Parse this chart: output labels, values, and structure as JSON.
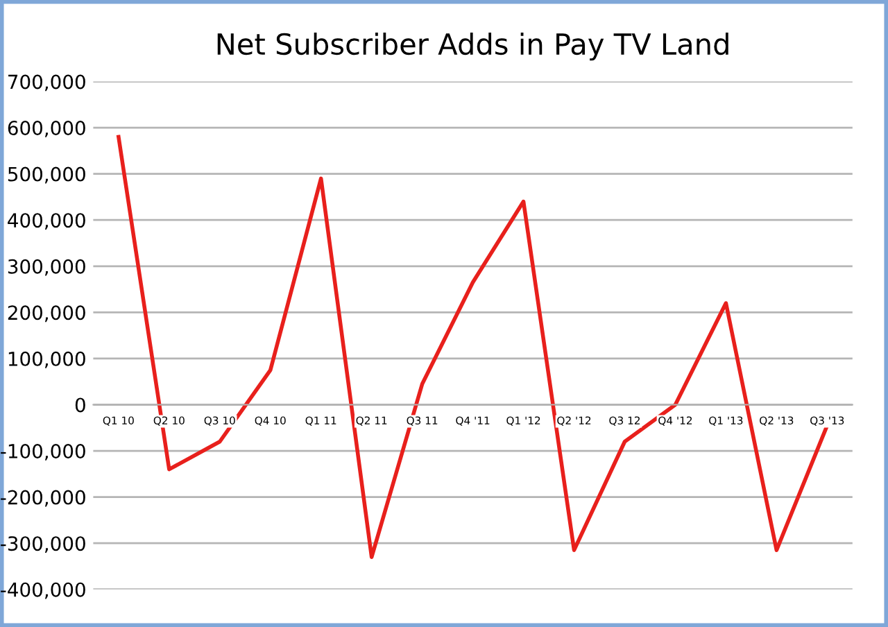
{
  "chart_data": {
    "type": "line",
    "title": "Net Subscriber Adds in Pay TV Land",
    "categories": [
      "Q1 10",
      "Q2 10",
      "Q3 10",
      "Q4 10",
      "Q1 11",
      "Q2 11",
      "Q3 11",
      "Q4 '11",
      "Q1 '12",
      "Q2 '12",
      "Q3 12",
      "Q4 '12",
      "Q1 '13",
      "Q2 '13",
      "Q3 '13"
    ],
    "series": [
      {
        "color": "#e8201c",
        "values": [
          580000,
          -140000,
          -80000,
          75000,
          490000,
          -330000,
          45000,
          265000,
          440000,
          -315000,
          -80000,
          0,
          220000,
          -315000,
          -45000
        ]
      }
    ],
    "ylim": [
      -400000,
      700000
    ],
    "yticks": [
      {
        "value": -400000,
        "label": "-400,000"
      },
      {
        "value": -300000,
        "label": "-300,000"
      },
      {
        "value": -200000,
        "label": "-200,000"
      },
      {
        "value": -100000,
        "label": "-100,000"
      },
      0,
      {
        "value": 100000,
        "label": "100,000"
      },
      {
        "value": 200000,
        "label": "200,000"
      },
      {
        "value": 300000,
        "label": "300,000"
      },
      {
        "value": 400000,
        "label": "400,000"
      },
      {
        "value": 500000,
        "label": "500,000"
      },
      {
        "value": 600000,
        "label": "600,000"
      },
      {
        "value": 700000,
        "label": "700,000"
      }
    ],
    "grid": "y",
    "legend": false,
    "marker": "none",
    "line_style": "solid"
  }
}
